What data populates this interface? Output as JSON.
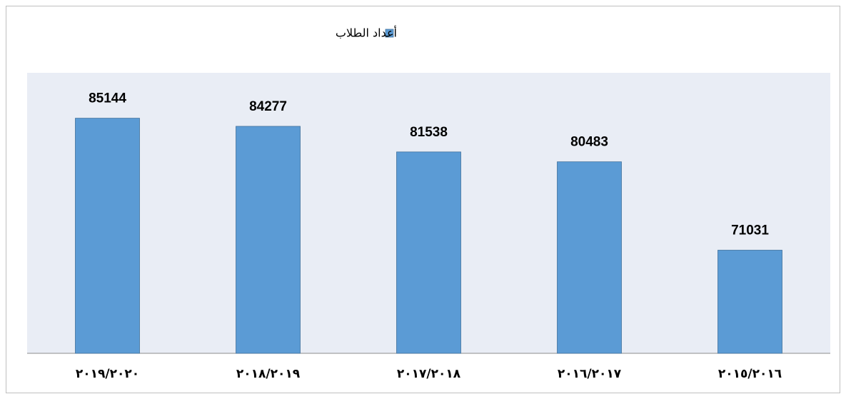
{
  "chart_data": {
    "type": "bar",
    "categories": [
      "٢٠١٩/٢٠٢٠",
      "٢٠١٨/٢٠١٩",
      "٢٠١٧/٢٠١٨",
      "٢٠١٦/٢٠١٧",
      "٢٠١٥/٢٠١٦"
    ],
    "series": [
      {
        "name": "أعداد الطلاب",
        "color": "#5b9bd5",
        "values": [
          85144,
          84277,
          81538,
          80483,
          71031
        ]
      }
    ],
    "ylim": [
      60000,
      90000
    ],
    "legend": "top"
  }
}
